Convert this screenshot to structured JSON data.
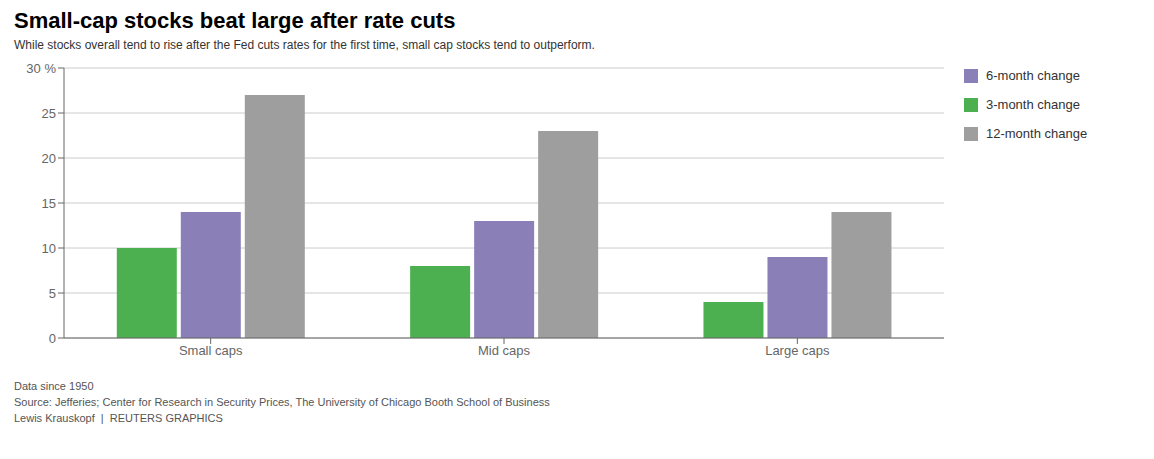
{
  "chart_data": {
    "type": "bar",
    "title": "Small-cap stocks beat large after rate cuts",
    "subtitle": "While stocks overall tend to rise after the Fed cuts rates for the first time, small cap stocks tend to outperform.",
    "categories": [
      "Small caps",
      "Mid caps",
      "Large caps"
    ],
    "series": [
      {
        "name": "3-month change",
        "color": "#4caf50",
        "values": [
          10,
          8,
          4
        ]
      },
      {
        "name": "6-month change",
        "color": "#8b7fb8",
        "values": [
          14,
          13,
          9
        ]
      },
      {
        "name": "12-month change",
        "color": "#9e9e9e",
        "values": [
          27,
          23,
          14
        ]
      }
    ],
    "ylim": [
      0,
      30
    ],
    "yticks": [
      0,
      5,
      10,
      15,
      20,
      25,
      {
        "value": 30,
        "label": "30 %"
      }
    ],
    "grid": true,
    "legend": "right",
    "annotations": [
      "Data since 1950",
      "Source: Jefferies; Center for Research in Security Prices, The University of Chicago Booth School of Business",
      "Lewis Krauskopf  |  REUTERS GRAPHICS"
    ]
  }
}
